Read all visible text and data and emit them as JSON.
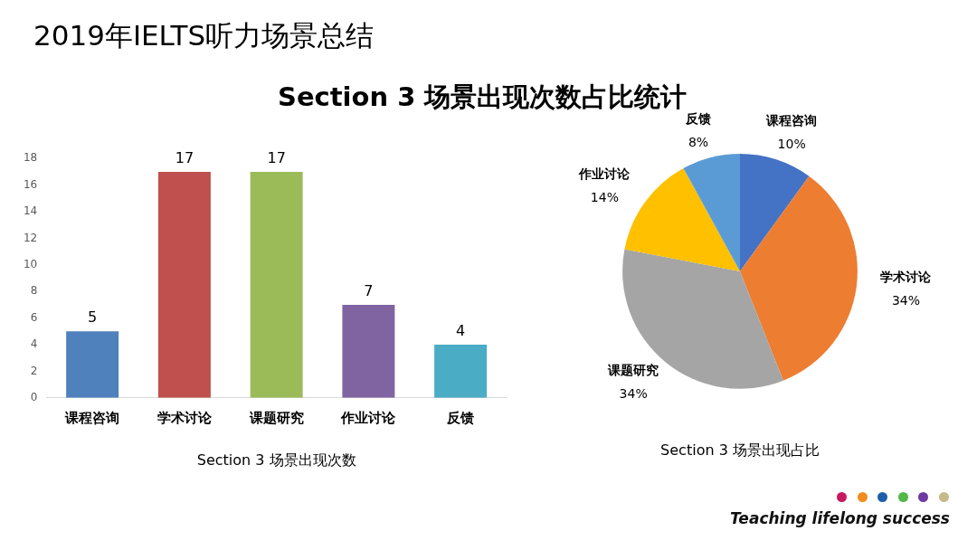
{
  "chart_data": [
    {
      "type": "bar",
      "title": "2019年IELTS听力场景总结",
      "subtitle": "Section 3 场景出现次数占比统计",
      "xlabel": "Section 3 场景出现次数",
      "categories": [
        "课程咨询",
        "学术讨论",
        "课题研究",
        "作业讨论",
        "反馈"
      ],
      "values": [
        5,
        17,
        17,
        7,
        4
      ],
      "colors": [
        "#4f81bd",
        "#c0504d",
        "#9bbb59",
        "#8064a2",
        "#4bacc6"
      ],
      "ylim": [
        0,
        18
      ],
      "yticks": [
        0,
        2,
        4,
        6,
        8,
        10,
        12,
        14,
        16,
        18
      ],
      "grid": false,
      "legend": false,
      "data_labels": true
    },
    {
      "type": "pie",
      "title": "Section 3 场景出现占比",
      "categories": [
        "课程咨询",
        "学术讨论",
        "课题研究",
        "作业讨论",
        "反馈"
      ],
      "values": [
        10,
        34,
        34,
        14,
        8
      ],
      "colors": [
        "#4472c4",
        "#ed7d31",
        "#a5a5a5",
        "#ffc000",
        "#5b9bd5"
      ],
      "value_labels": [
        "10%",
        "34%",
        "34%",
        "14%",
        "8%"
      ],
      "legend": false,
      "annotations": [
        "Teaching lifelong success"
      ]
    }
  ]
}
